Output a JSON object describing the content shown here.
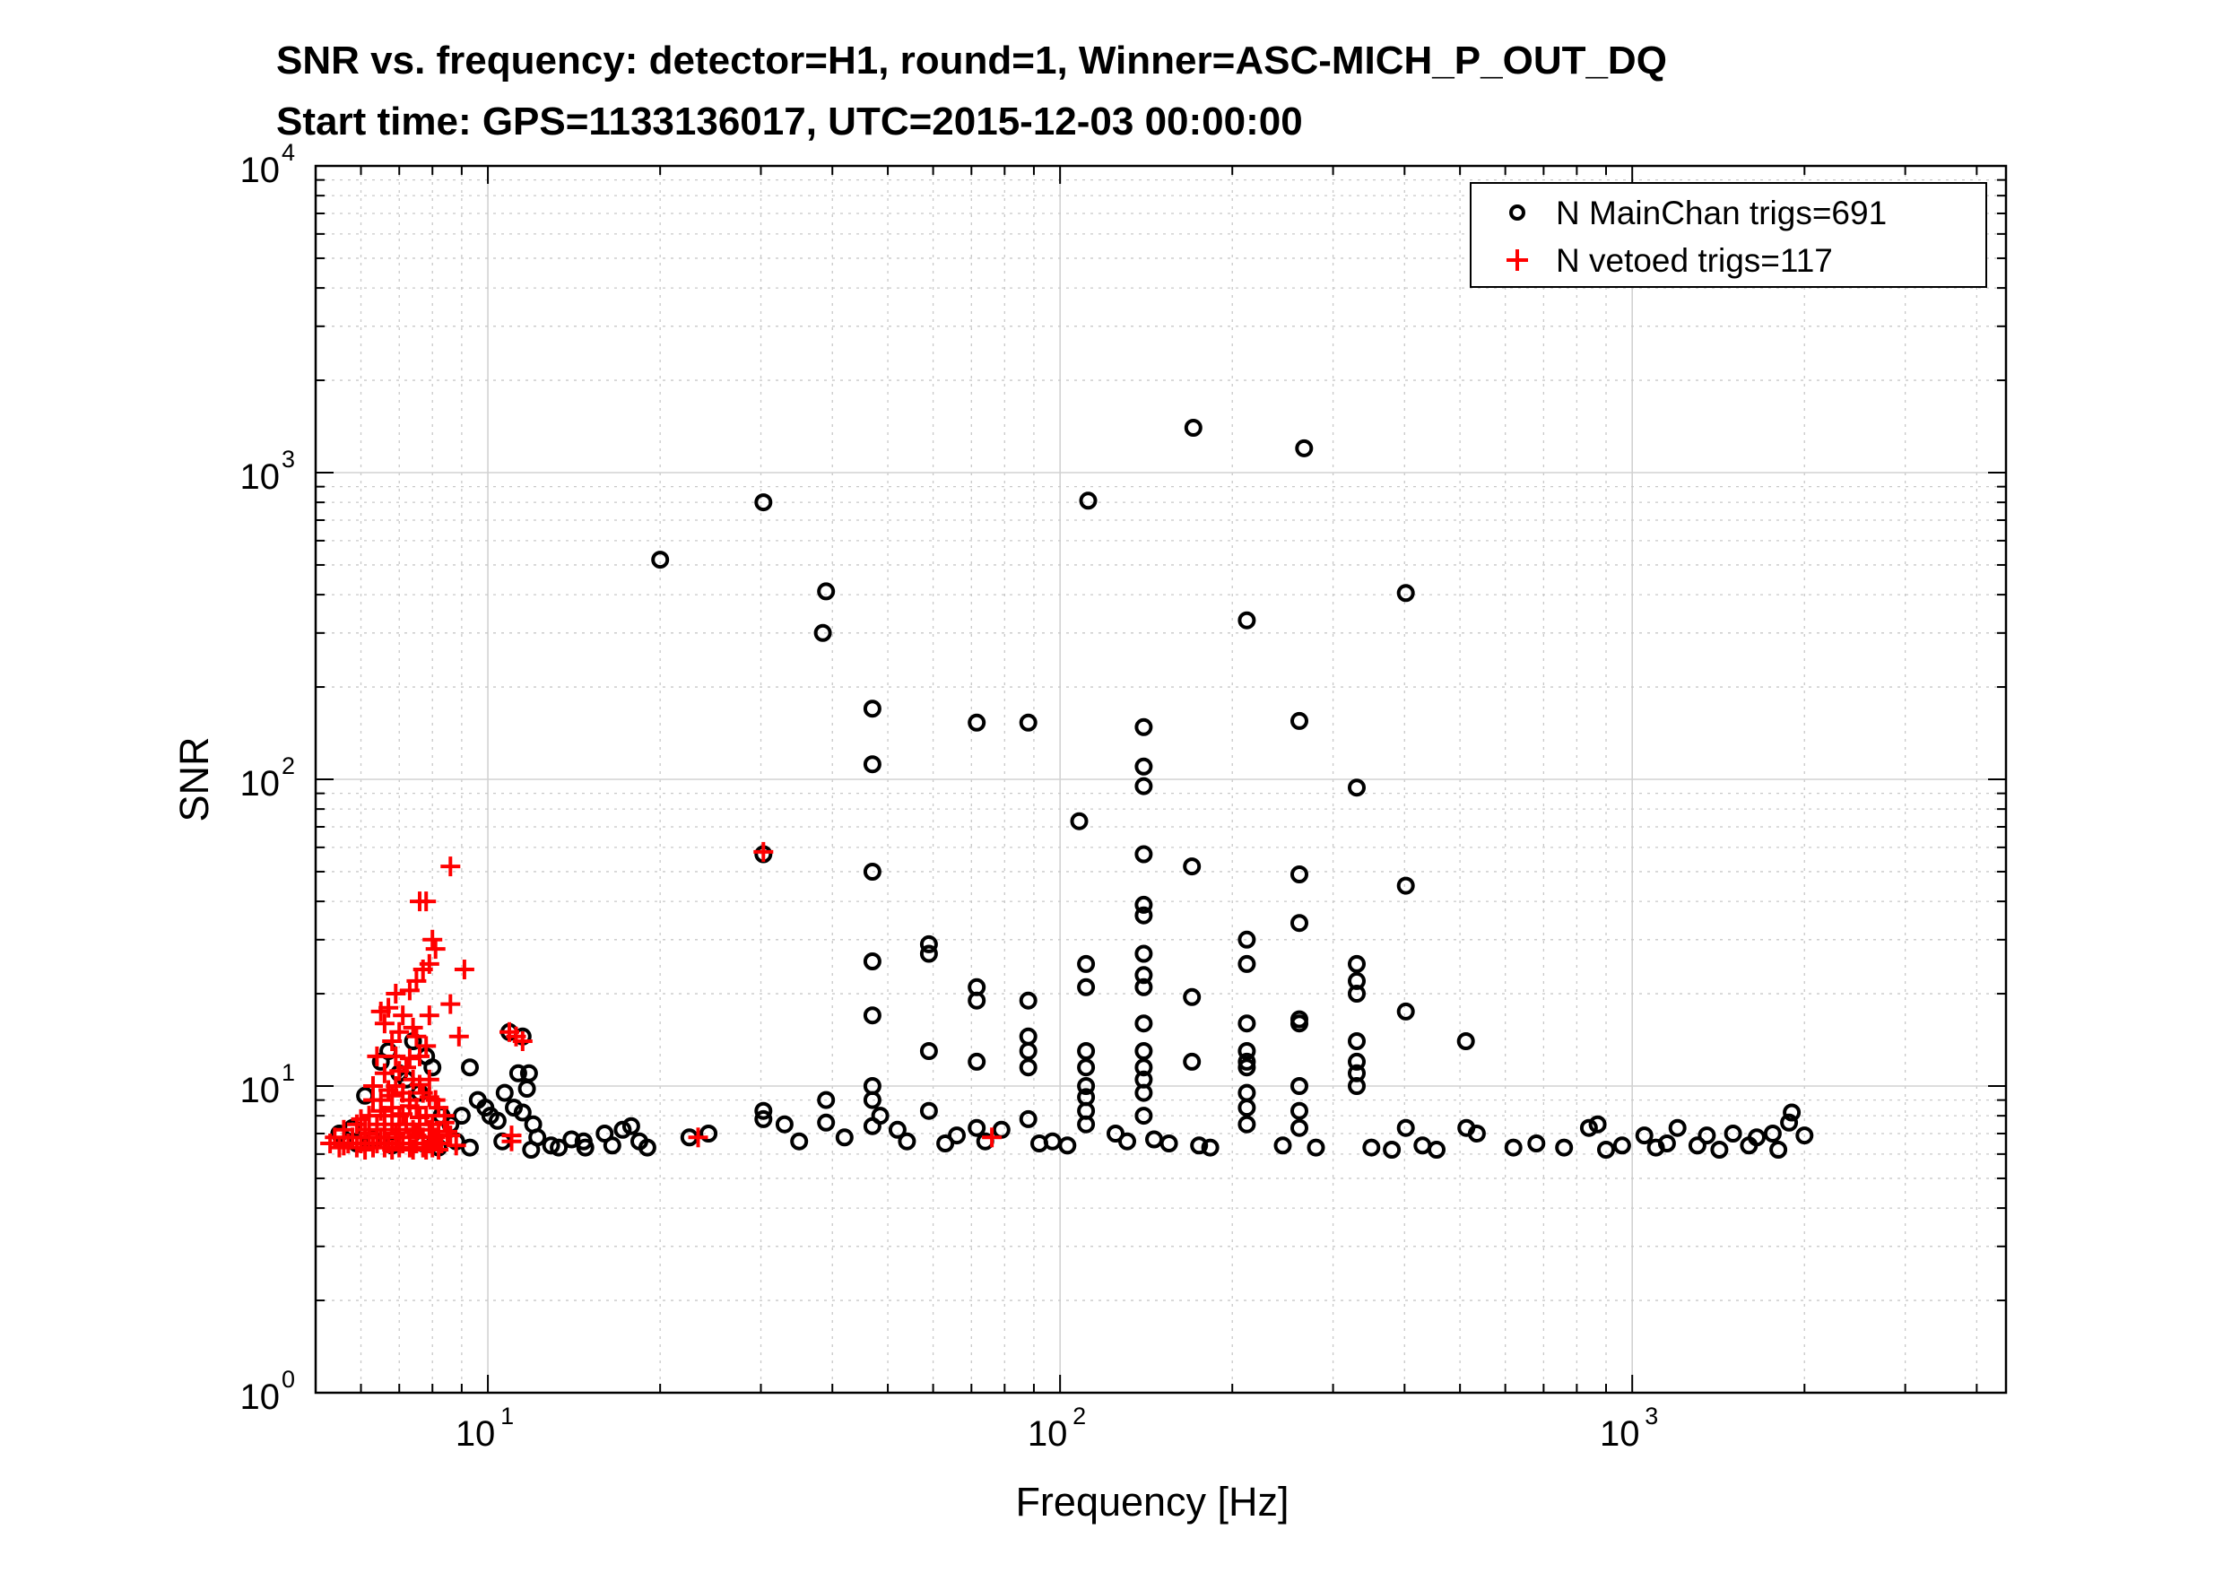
{
  "chart_data": {
    "type": "scatter",
    "title": "SNR vs. frequency: detector=H1, round=1, Winner=ASC-MICH_P_OUT_DQ",
    "subtitle": "Start time: GPS=1133136017, UTC=2015-12-03 00:00:00",
    "xlabel": "Frequency [Hz]",
    "ylabel": "SNR",
    "xscale": "log",
    "yscale": "log",
    "xlim": [
      5,
      4500
    ],
    "ylim": [
      1,
      10000
    ],
    "grid": true,
    "legend_position": "top-right",
    "x_ticks": [
      {
        "base": "10",
        "exp": "1",
        "value": 10
      },
      {
        "base": "10",
        "exp": "2",
        "value": 100
      },
      {
        "base": "10",
        "exp": "3",
        "value": 1000
      }
    ],
    "y_ticks": [
      {
        "base": "10",
        "exp": "0",
        "value": 1
      },
      {
        "base": "10",
        "exp": "1",
        "value": 10
      },
      {
        "base": "10",
        "exp": "2",
        "value": 100
      },
      {
        "base": "10",
        "exp": "3",
        "value": 1000
      },
      {
        "base": "10",
        "exp": "4",
        "value": 10000
      }
    ],
    "series": [
      {
        "name": "N MainChan trigs=691",
        "marker": "circle",
        "color": "#000000",
        "points": [
          [
            20,
            520
          ],
          [
            30.3,
            800
          ],
          [
            39,
            410
          ],
          [
            38.5,
            300
          ],
          [
            112,
            810
          ],
          [
            171,
            1400
          ],
          [
            267,
            1200
          ],
          [
            212,
            330
          ],
          [
            402,
            405
          ],
          [
            47,
            170
          ],
          [
            47,
            112
          ],
          [
            71.5,
            153
          ],
          [
            88,
            153
          ],
          [
            140,
            148
          ],
          [
            140,
            110
          ],
          [
            140,
            95
          ],
          [
            108,
            73
          ],
          [
            262,
            155
          ],
          [
            330,
            94
          ],
          [
            30.3,
            57
          ],
          [
            47,
            50
          ],
          [
            140,
            57
          ],
          [
            170,
            52
          ],
          [
            262,
            49
          ],
          [
            402,
            45
          ],
          [
            140,
            39
          ],
          [
            140,
            36
          ],
          [
            262,
            34
          ],
          [
            59,
            29
          ],
          [
            59,
            27
          ],
          [
            47,
            25.5
          ],
          [
            111,
            25
          ],
          [
            140,
            27
          ],
          [
            212,
            30
          ],
          [
            212,
            25
          ],
          [
            330,
            25
          ],
          [
            71.5,
            21
          ],
          [
            71.5,
            19
          ],
          [
            111,
            21
          ],
          [
            140,
            23
          ],
          [
            140,
            21
          ],
          [
            170,
            19.5
          ],
          [
            88,
            19
          ],
          [
            330,
            22
          ],
          [
            330,
            20
          ],
          [
            47,
            17
          ],
          [
            59,
            13
          ],
          [
            88,
            14.5
          ],
          [
            88,
            13
          ],
          [
            111,
            13
          ],
          [
            140,
            16
          ],
          [
            140,
            13
          ],
          [
            212,
            16
          ],
          [
            212,
            13
          ],
          [
            212,
            12
          ],
          [
            262,
            16.5
          ],
          [
            262,
            16
          ],
          [
            330,
            14
          ],
          [
            402,
            17.5
          ],
          [
            512,
            14
          ],
          [
            71.5,
            12
          ],
          [
            88,
            11.5
          ],
          [
            111,
            11.5
          ],
          [
            140,
            11.5
          ],
          [
            140,
            10.5
          ],
          [
            140,
            9.5
          ],
          [
            170,
            12
          ],
          [
            212,
            11.5
          ],
          [
            212,
            9.5
          ],
          [
            262,
            10
          ],
          [
            330,
            12
          ],
          [
            330,
            11
          ],
          [
            330,
            10
          ],
          [
            47,
            10
          ],
          [
            111,
            10
          ],
          [
            111,
            9.2
          ],
          [
            212,
            8.5
          ],
          [
            262,
            8.3
          ],
          [
            30.3,
            8.3
          ],
          [
            39,
            9
          ],
          [
            47,
            9
          ],
          [
            48.5,
            8
          ],
          [
            59,
            8.3
          ],
          [
            111,
            8.3
          ],
          [
            140,
            8
          ],
          [
            402,
            7.3
          ],
          [
            212,
            7.5
          ],
          [
            262,
            7.3
          ],
          [
            71.5,
            7.3
          ],
          [
            79,
            7.2
          ],
          [
            88,
            7.8
          ],
          [
            111,
            7.5
          ],
          [
            125,
            7
          ],
          [
            30.3,
            7.8
          ],
          [
            33,
            7.5
          ],
          [
            39,
            7.6
          ],
          [
            47,
            7.4
          ],
          [
            513,
            7.3
          ],
          [
            535,
            7.0
          ],
          [
            840,
            7.3
          ],
          [
            870,
            7.5
          ],
          [
            1200,
            7.3
          ],
          [
            1900,
            8.2
          ],
          [
            1880,
            7.6
          ],
          [
            2000,
            6.9
          ],
          [
            1500,
            7.0
          ],
          [
            1350,
            6.9
          ],
          [
            1760,
            7.0
          ],
          [
            1650,
            6.8
          ],
          [
            1050,
            6.9
          ],
          [
            17.2,
            7.2
          ],
          [
            17.8,
            7.4
          ],
          [
            18.4,
            6.6
          ],
          [
            16,
            7.0
          ],
          [
            14.7,
            6.6
          ],
          [
            22.5,
            6.8
          ],
          [
            24.3,
            7.0
          ],
          [
            35,
            6.6
          ],
          [
            42,
            6.8
          ],
          [
            52,
            7.2
          ],
          [
            54,
            6.6
          ],
          [
            63,
            6.5
          ],
          [
            66,
            6.9
          ],
          [
            74,
            6.6
          ],
          [
            92,
            6.5
          ],
          [
            97,
            6.6
          ],
          [
            103,
            6.4
          ],
          [
            131,
            6.6
          ],
          [
            146,
            6.7
          ],
          [
            155,
            6.5
          ],
          [
            175,
            6.4
          ],
          [
            183,
            6.3
          ],
          [
            245,
            6.4
          ],
          [
            280,
            6.3
          ],
          [
            350,
            6.3
          ],
          [
            380,
            6.2
          ],
          [
            430,
            6.4
          ],
          [
            455,
            6.2
          ],
          [
            620,
            6.3
          ],
          [
            680,
            6.5
          ],
          [
            760,
            6.3
          ],
          [
            900,
            6.2
          ],
          [
            960,
            6.4
          ],
          [
            1100,
            6.3
          ],
          [
            1150,
            6.5
          ],
          [
            1300,
            6.4
          ],
          [
            1420,
            6.2
          ],
          [
            1600,
            6.4
          ],
          [
            1800,
            6.2
          ],
          [
            10.9,
            15
          ],
          [
            11.5,
            14.5
          ],
          [
            11.3,
            11
          ],
          [
            11.8,
            11
          ],
          [
            10.7,
            9.5
          ],
          [
            11.7,
            9.8
          ],
          [
            11.1,
            8.5
          ],
          [
            9.3,
            11.5
          ],
          [
            9.6,
            9.0
          ],
          [
            9.9,
            8.5
          ],
          [
            10.1,
            8.0
          ],
          [
            9.0,
            8.0
          ],
          [
            10.4,
            7.7
          ],
          [
            11.5,
            8.2
          ],
          [
            12.0,
            7.5
          ],
          [
            12.2,
            6.8
          ],
          [
            12.9,
            6.4
          ],
          [
            11.9,
            6.2
          ],
          [
            10.6,
            6.6
          ],
          [
            9.3,
            6.3
          ],
          [
            8.8,
            6.6
          ],
          [
            13.3,
            6.3
          ],
          [
            14.0,
            6.7
          ],
          [
            14.8,
            6.3
          ],
          [
            16.5,
            6.4
          ],
          [
            19.0,
            6.3
          ],
          [
            5.5,
            7.0
          ],
          [
            5.8,
            7.3
          ],
          [
            6.1,
            9.3
          ],
          [
            6.3,
            6.7
          ],
          [
            6.5,
            12
          ],
          [
            6.7,
            13
          ],
          [
            7.0,
            11
          ],
          [
            7.2,
            10.5
          ],
          [
            7.4,
            14
          ],
          [
            7.6,
            9.5
          ],
          [
            7.8,
            12.5
          ],
          [
            8.0,
            11.5
          ],
          [
            8.3,
            8.0
          ],
          [
            8.6,
            7.5
          ],
          [
            5.9,
            6.5
          ],
          [
            6.8,
            6.4
          ],
          [
            7.7,
            6.5
          ],
          [
            8.2,
            6.3
          ]
        ]
      },
      {
        "name": "N vetoed trigs=117",
        "marker": "plus",
        "color": "#ff0000",
        "points": [
          [
            8.6,
            52
          ],
          [
            7.8,
            40
          ],
          [
            7.6,
            40
          ],
          [
            30.3,
            58
          ],
          [
            8.0,
            30
          ],
          [
            8.1,
            28
          ],
          [
            7.9,
            25
          ],
          [
            7.7,
            24
          ],
          [
            9.1,
            24
          ],
          [
            7.5,
            22
          ],
          [
            7.3,
            20.5
          ],
          [
            6.9,
            20
          ],
          [
            6.7,
            18
          ],
          [
            6.5,
            17.5
          ],
          [
            8.6,
            18.5
          ],
          [
            7.1,
            17
          ],
          [
            7.9,
            17
          ],
          [
            7.4,
            15.5
          ],
          [
            6.6,
            16
          ],
          [
            7.0,
            15
          ],
          [
            6.8,
            14
          ],
          [
            7.5,
            14.5
          ],
          [
            7.8,
            13.5
          ],
          [
            8.9,
            14.5
          ],
          [
            10.9,
            15
          ],
          [
            11.2,
            14.5
          ],
          [
            11.5,
            14
          ],
          [
            6.4,
            12.5
          ],
          [
            6.9,
            12.5
          ],
          [
            7.6,
            12.5
          ],
          [
            7.2,
            11.5
          ],
          [
            6.6,
            11
          ],
          [
            7.4,
            10.5
          ],
          [
            7.9,
            10.5
          ],
          [
            6.3,
            10
          ],
          [
            6.9,
            10
          ],
          [
            7.1,
            9.5
          ],
          [
            7.7,
            9.5
          ],
          [
            6.5,
            9
          ],
          [
            7.3,
            9
          ],
          [
            6.8,
            8.5
          ],
          [
            7.5,
            8.5
          ],
          [
            8.2,
            8.5
          ],
          [
            6.2,
            8
          ],
          [
            6.6,
            8
          ],
          [
            7.0,
            8
          ],
          [
            7.8,
            8
          ],
          [
            8.4,
            8
          ],
          [
            5.9,
            7.5
          ],
          [
            6.4,
            7.5
          ],
          [
            6.8,
            7.5
          ],
          [
            7.2,
            7.5
          ],
          [
            7.6,
            7.5
          ],
          [
            8.0,
            7.5
          ],
          [
            5.6,
            7.2
          ],
          [
            6.1,
            7.2
          ],
          [
            6.6,
            7.2
          ],
          [
            7.0,
            7.2
          ],
          [
            7.4,
            7.2
          ],
          [
            7.9,
            7.2
          ],
          [
            5.4,
            6.8
          ],
          [
            5.8,
            6.8
          ],
          [
            6.2,
            6.8
          ],
          [
            6.5,
            6.8
          ],
          [
            6.9,
            6.8
          ],
          [
            7.3,
            6.8
          ],
          [
            7.7,
            6.8
          ],
          [
            8.1,
            6.8
          ],
          [
            8.6,
            6.9
          ],
          [
            5.3,
            6.5
          ],
          [
            5.7,
            6.5
          ],
          [
            6.0,
            6.5
          ],
          [
            6.4,
            6.5
          ],
          [
            6.7,
            6.5
          ],
          [
            7.1,
            6.5
          ],
          [
            7.5,
            6.5
          ],
          [
            7.9,
            6.5
          ],
          [
            8.3,
            6.5
          ],
          [
            5.5,
            6.3
          ],
          [
            5.9,
            6.3
          ],
          [
            6.3,
            6.3
          ],
          [
            6.6,
            6.3
          ],
          [
            7.0,
            6.3
          ],
          [
            7.3,
            6.3
          ],
          [
            7.7,
            6.3
          ],
          [
            8.0,
            6.3
          ],
          [
            6.1,
            6.2
          ],
          [
            6.8,
            6.2
          ],
          [
            7.4,
            6.2
          ],
          [
            7.8,
            6.2
          ],
          [
            8.2,
            6.2
          ],
          [
            6.0,
            7.8
          ],
          [
            6.3,
            9
          ],
          [
            6.5,
            8.3
          ],
          [
            6.8,
            9.3
          ],
          [
            7.1,
            8.1
          ],
          [
            7.3,
            8.6
          ],
          [
            7.6,
            7.9
          ],
          [
            8.4,
            7.6
          ],
          [
            8.5,
            7.1
          ],
          [
            8.2,
            6.9
          ],
          [
            11.0,
            6.6
          ],
          [
            11.0,
            6.9
          ],
          [
            23.3,
            6.8
          ],
          [
            76,
            6.8
          ],
          [
            7.0,
            11.2
          ],
          [
            7.3,
            12.3
          ],
          [
            7.6,
            10.1
          ],
          [
            6.7,
            9.7
          ],
          [
            7.9,
            9.2
          ],
          [
            6.2,
            7.0
          ],
          [
            8.1,
            9.0
          ],
          [
            6.9,
            7.0
          ],
          [
            7.5,
            6.9
          ],
          [
            8.8,
            6.4
          ],
          [
            5.6,
            6.4
          ]
        ]
      }
    ]
  }
}
